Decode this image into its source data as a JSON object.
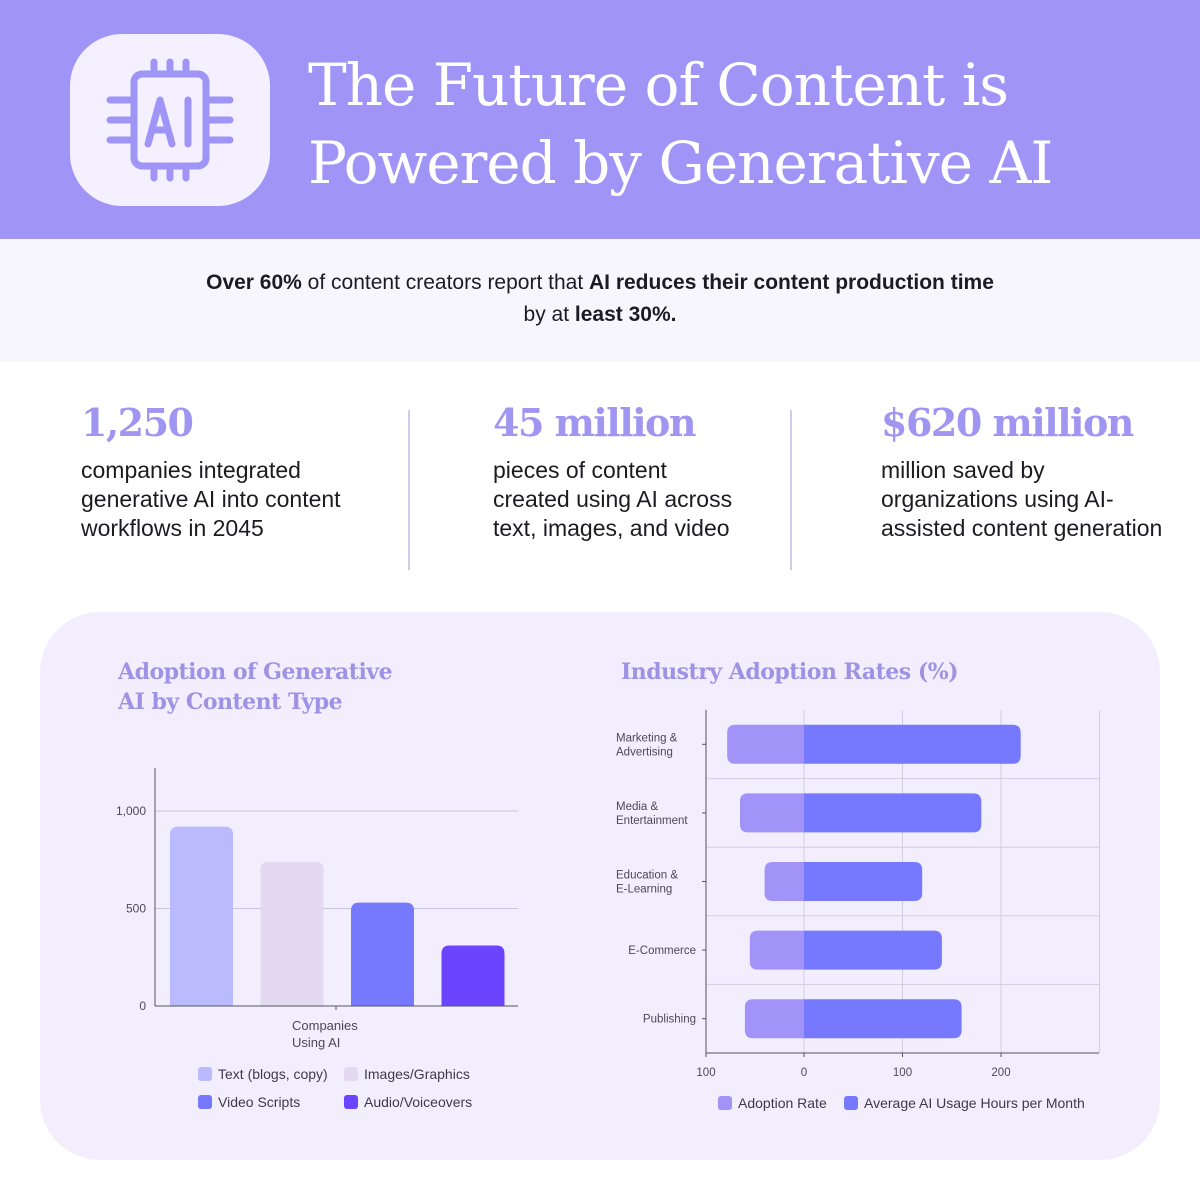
{
  "header": {
    "logo_icon": "ai-chip-icon",
    "logo_text": "AI",
    "title_line1": "The Future of Content is",
    "title_line2": "Powered by Generative AI"
  },
  "callout": {
    "part1_bold": "Over 60%",
    "part2": " of content creators report that ",
    "part3_bold": "AI reduces their content production time",
    "part4": " by at ",
    "part5_bold": "least 30%."
  },
  "stats": [
    {
      "value": "1,250",
      "description": "companies integrated generative AI into content workflows in 2045"
    },
    {
      "value": "45 million",
      "description": "pieces of content created using AI across text, images, and video"
    },
    {
      "value": "$620 million",
      "description": "million saved by organizations using AI-assisted content generation"
    }
  ],
  "colors": {
    "header_bg": "#a094f7",
    "accent_text": "#a195f2",
    "panel_bg": "#f3eefd",
    "bar_text": "#b9baff",
    "bar_images": "#e3d9f0",
    "bar_video": "#7678fe",
    "bar_audio": "#6b44ff",
    "adoption_rate": "#a193f8",
    "usage_hours": "#7678fe"
  },
  "chart_data": [
    {
      "type": "bar",
      "title": "Adoption of Generative AI by Content Type",
      "categories": [
        "Companies Using AI"
      ],
      "xlabel": "Companies Using AI",
      "ylabel": "",
      "ylim": [
        0,
        1200
      ],
      "yticks": [
        "0",
        "500",
        "1,000"
      ],
      "grid": true,
      "legend_position": "bottom",
      "series": [
        {
          "name": "Text (blogs, copy)",
          "values": [
            920
          ]
        },
        {
          "name": "Images/Graphics",
          "values": [
            740
          ]
        },
        {
          "name": "Video Scripts",
          "values": [
            530
          ]
        },
        {
          "name": "Audio/Voiceovers",
          "values": [
            310
          ]
        }
      ]
    },
    {
      "type": "bar",
      "orientation": "horizontal-diverging",
      "title": "Industry Adoption Rates (%)",
      "categories": [
        "Marketing & Advertising",
        "Media & Entertainment",
        "Education & E-Learning",
        "E-Commerce",
        "Publishing"
      ],
      "xlabel": "",
      "ylabel": "",
      "xlim": [
        -100,
        300
      ],
      "xticks": [
        "100",
        "0",
        "100",
        "200"
      ],
      "grid": true,
      "legend_position": "bottom",
      "series": [
        {
          "name": "Adoption Rate",
          "values": [
            78,
            65,
            40,
            55,
            60
          ]
        },
        {
          "name": "Average AI Usage Hours per Month",
          "values": [
            220,
            180,
            120,
            140,
            160
          ]
        }
      ]
    }
  ]
}
